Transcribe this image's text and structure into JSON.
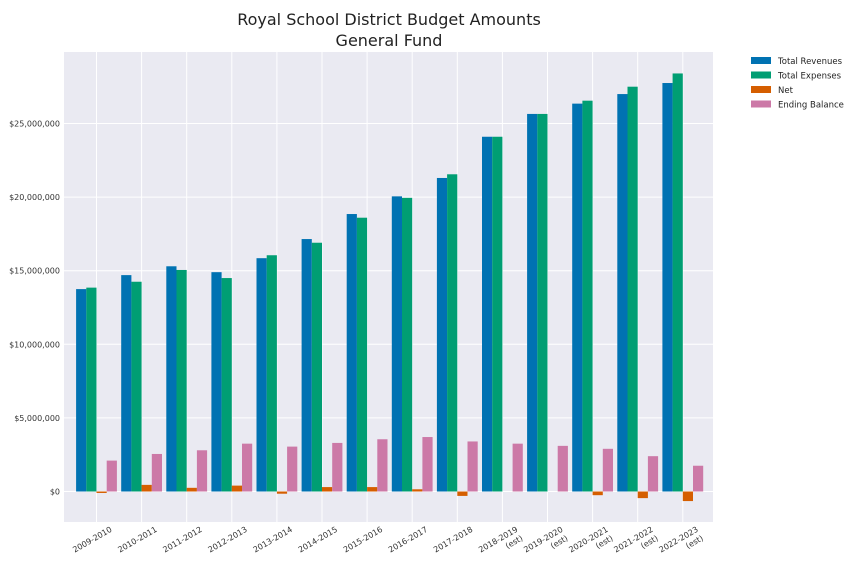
{
  "chart_data": {
    "type": "bar",
    "title": "Royal School District Budget Amounts",
    "subtitle": "General Fund",
    "xlabel": "",
    "ylabel": "",
    "categories": [
      "2009-2010",
      "2010-2011",
      "2011-2012",
      "2012-2013",
      "2013-2014",
      "2014-2015",
      "2015-2016",
      "2016-2017",
      "2017-2018",
      "2018-2019\n(est)",
      "2019-2020\n(est)",
      "2020-2021\n(est)",
      "2021-2022\n(est)",
      "2022-2023\n(est)"
    ],
    "series": [
      {
        "name": "Total Revenues",
        "color": "#0072B2",
        "values": [
          13750000,
          14700000,
          15300000,
          14900000,
          15850000,
          17150000,
          18850000,
          20050000,
          21300000,
          24100000,
          25650000,
          26350000,
          27000000,
          27750000
        ]
      },
      {
        "name": "Total Expenses",
        "color": "#009E73",
        "values": [
          13850000,
          14250000,
          15050000,
          14500000,
          16050000,
          16900000,
          18600000,
          19950000,
          21550000,
          24100000,
          25650000,
          26550000,
          27500000,
          28400000
        ]
      },
      {
        "name": "Net",
        "color": "#D55E00",
        "values": [
          -100000,
          450000,
          250000,
          400000,
          -150000,
          300000,
          300000,
          150000,
          -300000,
          0,
          0,
          -250000,
          -450000,
          -650000
        ]
      },
      {
        "name": "Ending Balance",
        "color": "#CC79A7",
        "values": [
          2100000,
          2550000,
          2800000,
          3250000,
          3050000,
          3300000,
          3550000,
          3700000,
          3400000,
          3250000,
          3100000,
          2900000,
          2400000,
          1750000
        ]
      }
    ],
    "yticks": [
      0,
      5000000,
      10000000,
      15000000,
      20000000,
      25000000
    ],
    "ytick_labels": [
      "$0",
      "$5,000,000",
      "$10,000,000",
      "$15,000,000",
      "$20,000,000",
      "$25,000,000"
    ],
    "ylim": [
      -2000000,
      30000000
    ],
    "grid": true,
    "legend": "outside-top-right"
  }
}
